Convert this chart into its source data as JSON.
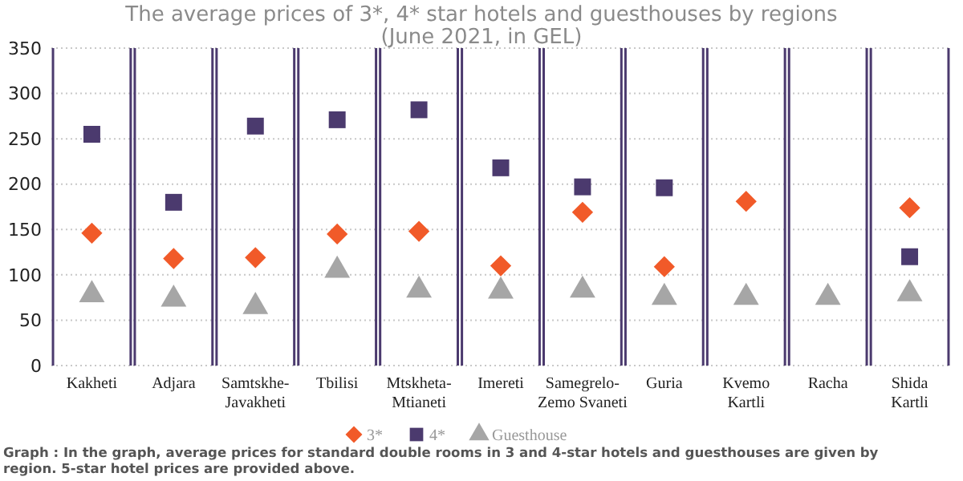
{
  "chart_data": {
    "type": "scatter",
    "title": "The average prices of 3*, 4* star hotels and guesthouses by regions",
    "subtitle": "(June 2021, in GEL)",
    "categories": [
      "Kakheti",
      "Adjara",
      "Samtskhe-Javakheti",
      "Tbilisi",
      "Mtskheta-Mtianeti",
      "Imereti",
      "Samegrelo-Zemo Svaneti",
      "Guria",
      "Kvemo Kartli",
      "Racha",
      "Shida Kartli"
    ],
    "series": [
      {
        "name": "3*",
        "color": "#f15a29",
        "marker": "diamond",
        "values": [
          146,
          118,
          119,
          145,
          148,
          110,
          169,
          109,
          181,
          null,
          174
        ]
      },
      {
        "name": "4*",
        "color": "#4b3a6e",
        "marker": "square",
        "values": [
          255,
          180,
          264,
          271,
          282,
          218,
          197,
          196,
          null,
          null,
          120
        ]
      },
      {
        "name": "Guesthouse",
        "color": "#a6a6a6",
        "marker": "triangle",
        "values": [
          78,
          73,
          65,
          105,
          83,
          82,
          83,
          75,
          75,
          75,
          79
        ]
      }
    ],
    "ylim": [
      0,
      350
    ],
    "yticks": [
      0,
      50,
      100,
      150,
      200,
      250,
      300,
      350
    ],
    "grid": true,
    "legend": "bottom",
    "annotations": [
      "Graph : In the graph, average prices for standard double rooms in 3 and 4-star hotels and guesthouses are given by region. 5-star hotel prices are provided above."
    ]
  }
}
